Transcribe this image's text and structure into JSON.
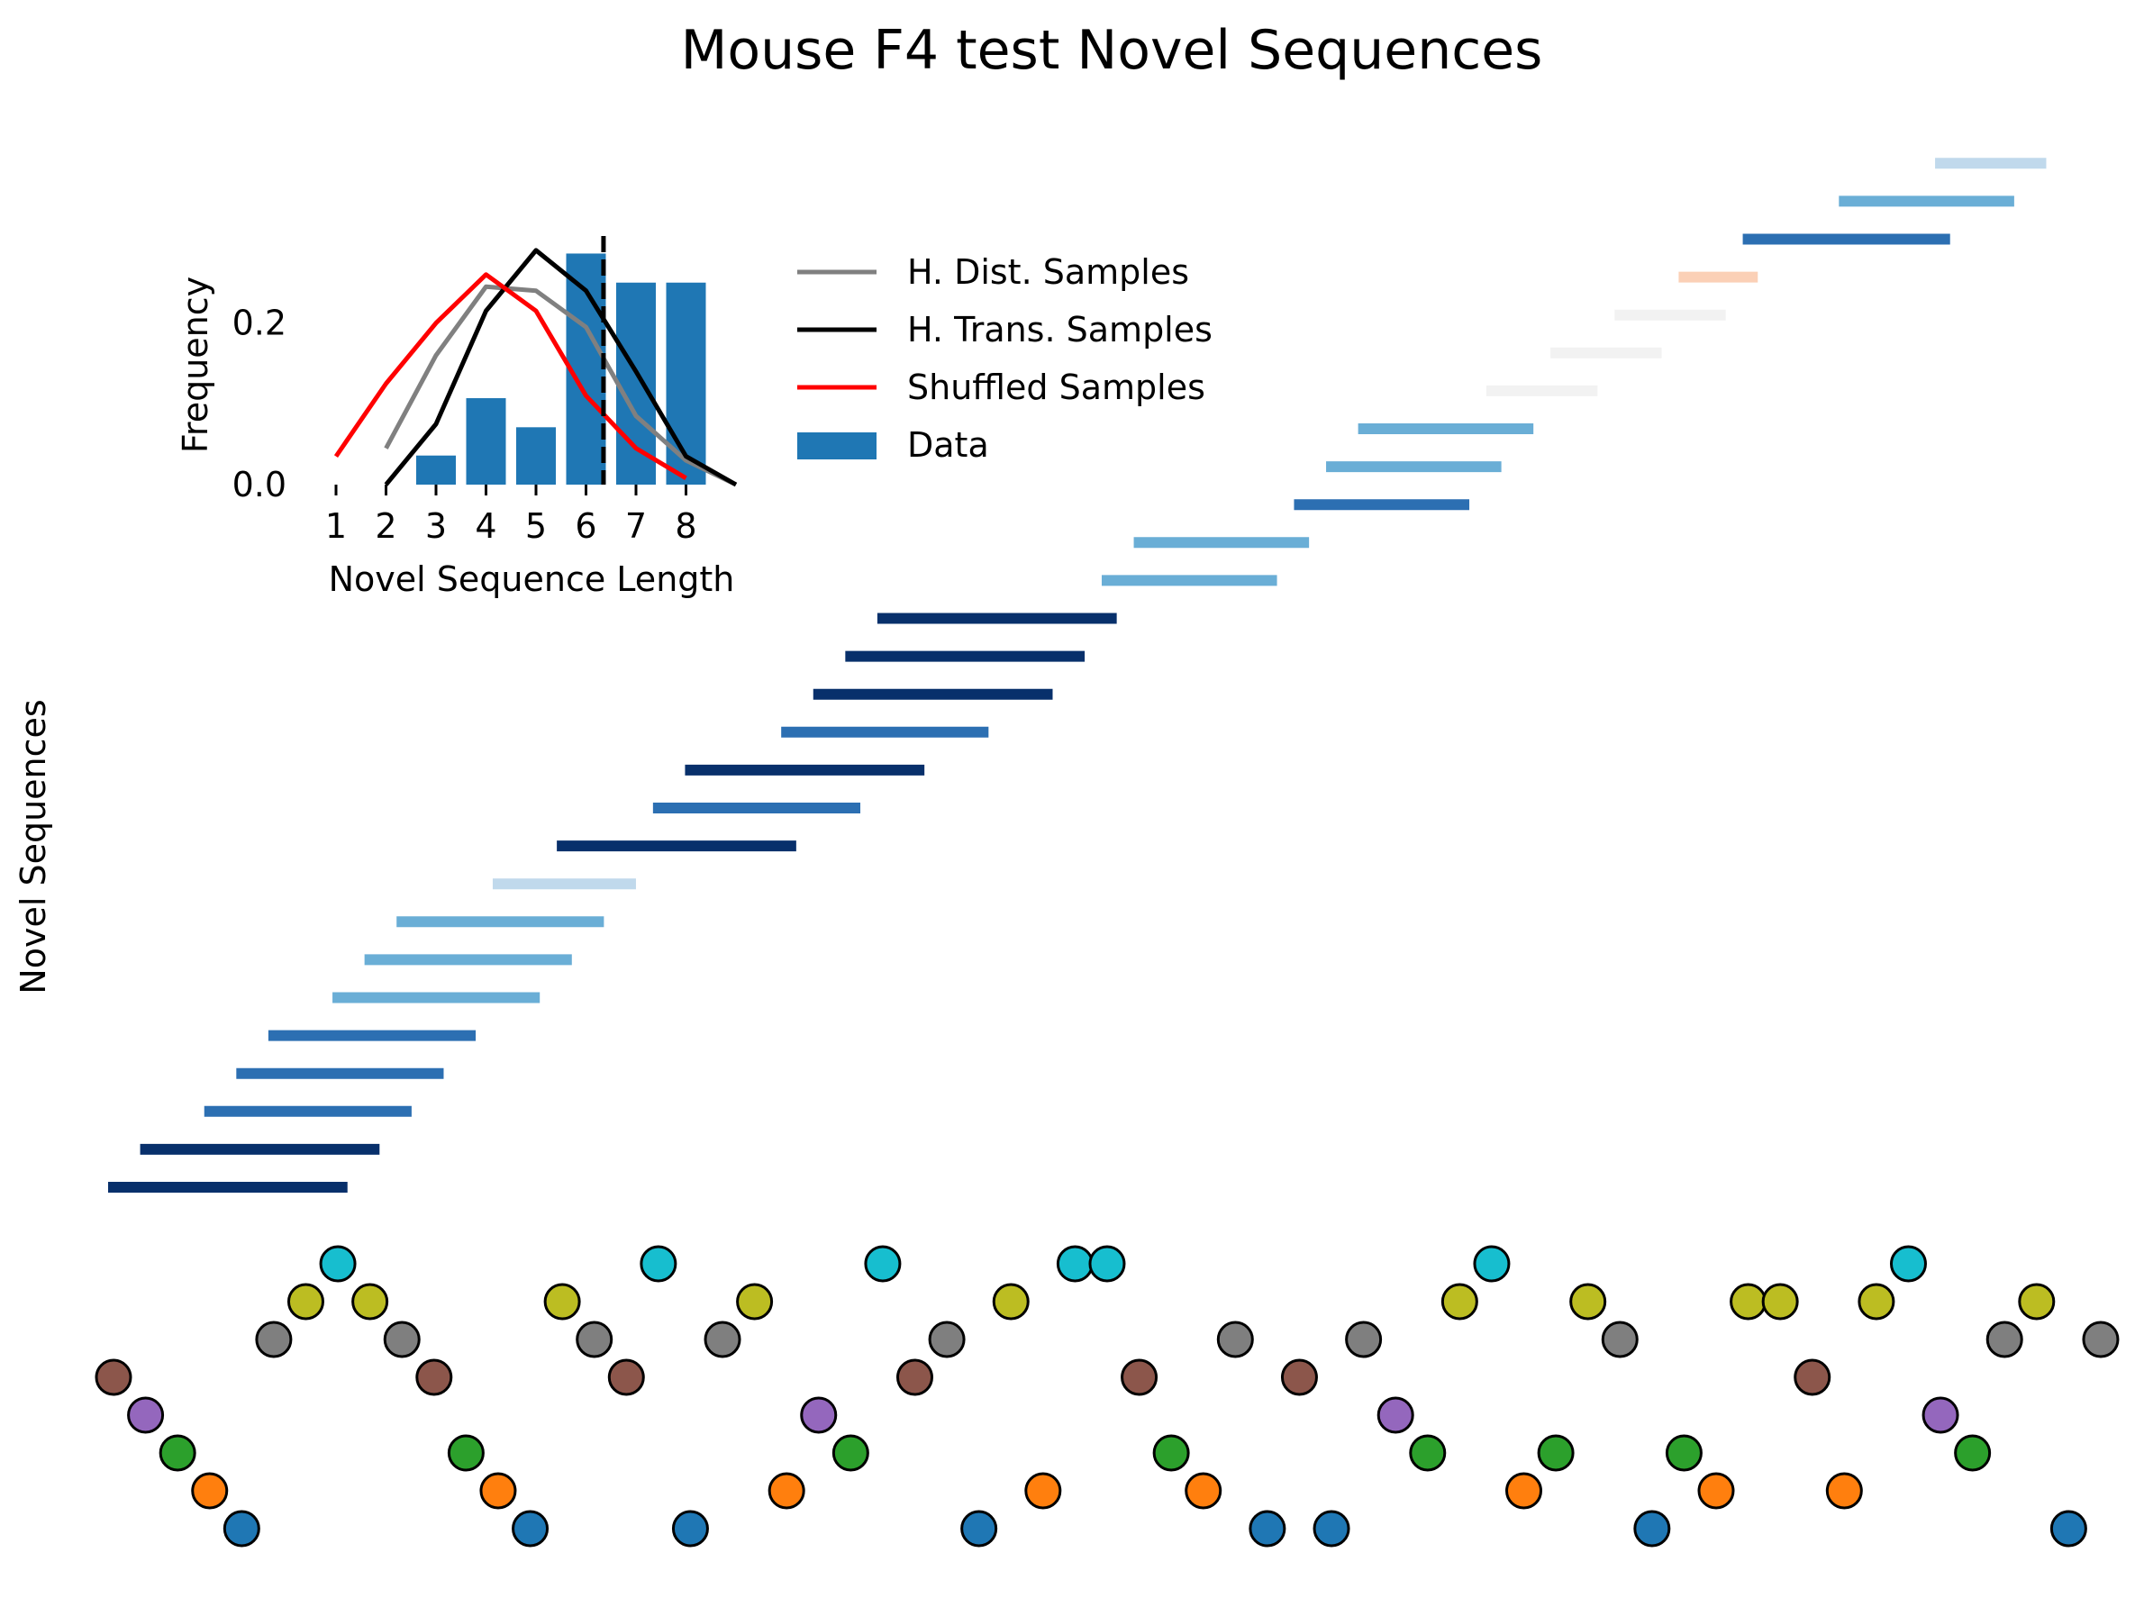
{
  "chart_data": [
    {
      "type": "timeline",
      "title": "Mouse F4 test Novel Sequences",
      "ylabel": "Novel Sequences",
      "sequence_x_range": [
        1,
        63
      ],
      "events": {
        "colors": [
          "#1f77b4",
          "#ff7f0e",
          "#2ca02c",
          "#9467bd",
          "#8c564b",
          "#7f7f7f",
          "#bcbd22",
          "#17becf"
        ],
        "levels": [
          4,
          3,
          2,
          1,
          0,
          5,
          6,
          7,
          6,
          5,
          4,
          2,
          1,
          0,
          6,
          5,
          4,
          7,
          0,
          5,
          6,
          1,
          3,
          2,
          7,
          4,
          5,
          0,
          6,
          1,
          7,
          7,
          4,
          2,
          1,
          5,
          0,
          4,
          0,
          5,
          3,
          2,
          6,
          7,
          1,
          2,
          6,
          5,
          0,
          2,
          1,
          6,
          6,
          4,
          1,
          6,
          7,
          3,
          2,
          5,
          6,
          0,
          5
        ],
        "first_x": 1,
        "step": 1
      },
      "segments": [
        {
          "start": 1,
          "end": 8.3,
          "color": "#08306b"
        },
        {
          "start": 2,
          "end": 9.3,
          "color": "#08306b"
        },
        {
          "start": 4,
          "end": 10.3,
          "color": "#2c6fb2"
        },
        {
          "start": 5,
          "end": 11.3,
          "color": "#2c6fb2"
        },
        {
          "start": 6,
          "end": 12.3,
          "color": "#2c6fb2"
        },
        {
          "start": 8,
          "end": 14.3,
          "color": "#6aaed6"
        },
        {
          "start": 9,
          "end": 15.3,
          "color": "#6aaed6"
        },
        {
          "start": 10,
          "end": 16.3,
          "color": "#6aaed6"
        },
        {
          "start": 13,
          "end": 17.3,
          "color": "#c0d9ec"
        },
        {
          "start": 15,
          "end": 22.3,
          "color": "#08306b"
        },
        {
          "start": 18,
          "end": 24.3,
          "color": "#2c6fb2"
        },
        {
          "start": 19,
          "end": 26.3,
          "color": "#08306b"
        },
        {
          "start": 22,
          "end": 28.3,
          "color": "#2c6fb2"
        },
        {
          "start": 23,
          "end": 30.3,
          "color": "#08306b"
        },
        {
          "start": 24,
          "end": 31.3,
          "color": "#08306b"
        },
        {
          "start": 25,
          "end": 32.3,
          "color": "#08306b"
        },
        {
          "start": 32,
          "end": 37.3,
          "color": "#6aaed6"
        },
        {
          "start": 33,
          "end": 38.3,
          "color": "#6aaed6"
        },
        {
          "start": 38,
          "end": 43.3,
          "color": "#2c6fb2"
        },
        {
          "start": 39,
          "end": 44.3,
          "color": "#6aaed6"
        },
        {
          "start": 40,
          "end": 45.3,
          "color": "#6aaed6"
        },
        {
          "start": 44,
          "end": 47.3,
          "color": "#f2f2f2"
        },
        {
          "start": 46,
          "end": 49.3,
          "color": "#f2f2f2"
        },
        {
          "start": 48,
          "end": 51.3,
          "color": "#f2f2f2"
        },
        {
          "start": 50,
          "end": 52.3,
          "color": "#fbd0b6"
        },
        {
          "start": 52,
          "end": 58.3,
          "color": "#2c6fb2"
        },
        {
          "start": 55,
          "end": 60.3,
          "color": "#6aaed6"
        },
        {
          "start": 58,
          "end": 61.3,
          "color": "#c0d9ec"
        }
      ]
    },
    {
      "type": "bar+line",
      "xlabel": "Novel Sequence Length",
      "ylabel": "Frequency",
      "xticks": [
        "1",
        "2",
        "3",
        "4",
        "5",
        "6",
        "7",
        "8"
      ],
      "yticks": [
        "0.0",
        "0.2"
      ],
      "xlim": [
        0.5,
        9.1
      ],
      "ylim": [
        0,
        0.31
      ],
      "mean_line_x": 6.35,
      "legend": {
        "position": "right",
        "entries": [
          "H. Dist. Samples",
          "H. Trans. Samples",
          "Shuffled Samples",
          "Data"
        ]
      },
      "series": [
        {
          "name": "Data",
          "kind": "bar",
          "color": "#1f77b4",
          "x": [
            3,
            4,
            5,
            6,
            7,
            8
          ],
          "values": [
            0.036,
            0.107,
            0.071,
            0.286,
            0.25,
            0.25
          ]
        },
        {
          "name": "H. Dist. Samples",
          "kind": "line",
          "color": "#808080",
          "x": [
            2,
            3,
            4,
            5,
            6,
            7,
            8,
            9
          ],
          "values": [
            0.045,
            0.16,
            0.245,
            0.24,
            0.195,
            0.085,
            0.03,
            0.0
          ]
        },
        {
          "name": "H. Trans. Samples",
          "kind": "line",
          "color": "#000000",
          "x": [
            2,
            3,
            4,
            5,
            6,
            7,
            8,
            9
          ],
          "values": [
            0.0,
            0.075,
            0.215,
            0.29,
            0.24,
            0.14,
            0.035,
            0.0
          ]
        },
        {
          "name": "Shuffled Samples",
          "kind": "line",
          "color": "#ff0000",
          "x": [
            1,
            2,
            3,
            4,
            5,
            6,
            7,
            8
          ],
          "values": [
            0.035,
            0.125,
            0.2,
            0.26,
            0.215,
            0.11,
            0.045,
            0.008
          ]
        }
      ]
    }
  ]
}
